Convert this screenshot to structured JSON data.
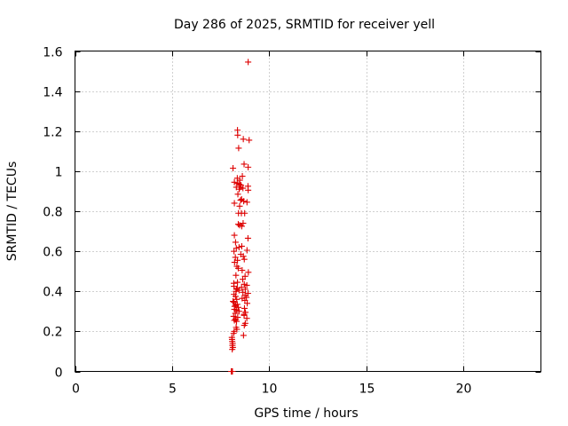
{
  "chart_data": {
    "type": "scatter",
    "title": "Day 286 of 2025, SRMTID for receiver yell",
    "xlabel": "GPS time / hours",
    "ylabel": "SRMTID / TECUs",
    "xlim": [
      0,
      24
    ],
    "ylim": [
      0,
      1.6
    ],
    "x_ticks": [
      0,
      5,
      10,
      15,
      20
    ],
    "y_ticks": [
      0,
      0.2,
      0.4,
      0.6,
      0.8,
      1,
      1.2,
      1.4,
      1.6
    ],
    "x_tick_labels": [
      "0",
      "5",
      "10",
      "15",
      "20"
    ],
    "y_tick_labels": [
      "0",
      "0.2",
      "0.4",
      "0.6",
      "0.8",
      "1",
      "1.2",
      "1.4",
      "1.6"
    ],
    "grid": true,
    "marker": "plus",
    "marker_color": "#dd0000",
    "series": [
      {
        "name": "SRMTID",
        "x": [
          8.92,
          8.37,
          8.38,
          8.67,
          8.97,
          8.43,
          8.71,
          8.92,
          8.14,
          8.62,
          8.36,
          8.49,
          8.21,
          8.38,
          8.47,
          8.55,
          8.91,
          8.31,
          8.52,
          8.65,
          8.46,
          8.92,
          8.39,
          8.58,
          8.53,
          8.69,
          8.86,
          8.21,
          8.48,
          8.57,
          8.74,
          8.42,
          8.66,
          8.41,
          8.48,
          8.59,
          8.21,
          8.91,
          8.27,
          8.59,
          8.45,
          8.31,
          8.86,
          8.19,
          8.54,
          8.67,
          8.26,
          8.72,
          8.37,
          8.22,
          8.34,
          8.41,
          8.61,
          8.93,
          8.29,
          8.76,
          8.64,
          8.37,
          8.18,
          8.72,
          8.85,
          8.19,
          8.58,
          8.36,
          8.32,
          8.77,
          8.45,
          8.29,
          8.65,
          8.91,
          8.19,
          8.76,
          8.27,
          8.83,
          8.61,
          8.33,
          8.75,
          8.14,
          8.19,
          8.87,
          8.36,
          8.27,
          8.22,
          8.41,
          8.73,
          8.21,
          8.33,
          8.45,
          8.78,
          8.26,
          8.71,
          8.71,
          8.17,
          8.38,
          8.85,
          8.27,
          8.21,
          8.32,
          8.77,
          8.72,
          8.3,
          8.34,
          8.2,
          8.17,
          8.68,
          8.08,
          8.09,
          8.1,
          8.12,
          8.11,
          8.13,
          8.1
        ],
        "y": [
          1.545,
          1.205,
          1.18,
          1.16,
          1.155,
          1.115,
          1.035,
          1.02,
          1.015,
          0.975,
          0.965,
          0.955,
          0.945,
          0.94,
          0.935,
          0.93,
          0.925,
          0.92,
          0.92,
          0.915,
          0.91,
          0.905,
          0.885,
          0.86,
          0.855,
          0.85,
          0.845,
          0.84,
          0.825,
          0.79,
          0.79,
          0.79,
          0.74,
          0.735,
          0.73,
          0.725,
          0.68,
          0.665,
          0.645,
          0.625,
          0.62,
          0.615,
          0.605,
          0.6,
          0.585,
          0.575,
          0.57,
          0.56,
          0.555,
          0.545,
          0.525,
          0.515,
          0.505,
          0.495,
          0.48,
          0.475,
          0.46,
          0.445,
          0.44,
          0.435,
          0.43,
          0.425,
          0.42,
          0.415,
          0.41,
          0.41,
          0.405,
          0.4,
          0.395,
          0.39,
          0.385,
          0.38,
          0.375,
          0.37,
          0.365,
          0.36,
          0.355,
          0.35,
          0.345,
          0.34,
          0.335,
          0.33,
          0.325,
          0.32,
          0.315,
          0.31,
          0.305,
          0.3,
          0.295,
          0.29,
          0.285,
          0.28,
          0.275,
          0.27,
          0.265,
          0.26,
          0.255,
          0.25,
          0.24,
          0.23,
          0.22,
          0.21,
          0.2,
          0.19,
          0.18,
          0.17,
          0.16,
          0.15,
          0.14,
          0.13,
          0.12,
          0.11
        ]
      },
      {
        "name": "SRMTID (zero values)",
        "x": [
          8.05,
          8.06,
          8.07,
          8.08,
          8.09,
          8.1,
          8.11
        ],
        "y": [
          0,
          0,
          0,
          0,
          0,
          0,
          0
        ]
      }
    ]
  }
}
